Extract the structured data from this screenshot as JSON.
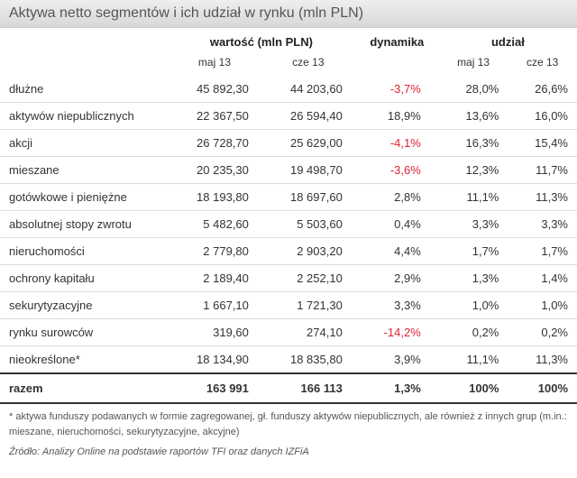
{
  "title": "Aktywa netto segmentów i ich udział w rynku (mln PLN)",
  "headers": {
    "group_value": "wartość (mln PLN)",
    "group_dyn": "dynamika",
    "group_share": "udział",
    "sub_may": "maj 13",
    "sub_jun": "cze 13"
  },
  "rows": [
    {
      "label": "dłużne",
      "v1": "45 892,30",
      "v2": "44 203,60",
      "dyn": "-3,7%",
      "neg": true,
      "s1": "28,0%",
      "s2": "26,6%"
    },
    {
      "label": "aktywów niepublicznych",
      "v1": "22 367,50",
      "v2": "26 594,40",
      "dyn": "18,9%",
      "neg": false,
      "s1": "13,6%",
      "s2": "16,0%"
    },
    {
      "label": "akcji",
      "v1": "26 728,70",
      "v2": "25 629,00",
      "dyn": "-4,1%",
      "neg": true,
      "s1": "16,3%",
      "s2": "15,4%"
    },
    {
      "label": "mieszane",
      "v1": "20 235,30",
      "v2": "19 498,70",
      "dyn": "-3,6%",
      "neg": true,
      "s1": "12,3%",
      "s2": "11,7%"
    },
    {
      "label": "gotówkowe i pieniężne",
      "v1": "18 193,80",
      "v2": "18 697,60",
      "dyn": "2,8%",
      "neg": false,
      "s1": "11,1%",
      "s2": "11,3%"
    },
    {
      "label": "absolutnej stopy zwrotu",
      "v1": "5 482,60",
      "v2": "5 503,60",
      "dyn": "0,4%",
      "neg": false,
      "s1": "3,3%",
      "s2": "3,3%"
    },
    {
      "label": "nieruchomości",
      "v1": "2 779,80",
      "v2": "2 903,20",
      "dyn": "4,4%",
      "neg": false,
      "s1": "1,7%",
      "s2": "1,7%"
    },
    {
      "label": "ochrony kapitału",
      "v1": "2 189,40",
      "v2": "2 252,10",
      "dyn": "2,9%",
      "neg": false,
      "s1": "1,3%",
      "s2": "1,4%"
    },
    {
      "label": "sekurytyzacyjne",
      "v1": "1 667,10",
      "v2": "1 721,30",
      "dyn": "3,3%",
      "neg": false,
      "s1": "1,0%",
      "s2": "1,0%"
    },
    {
      "label": "rynku surowców",
      "v1": "319,60",
      "v2": "274,10",
      "dyn": "-14,2%",
      "neg": true,
      "s1": "0,2%",
      "s2": "0,2%"
    },
    {
      "label": "nieokreślone*",
      "v1": "18 134,90",
      "v2": "18 835,80",
      "dyn": "3,9%",
      "neg": false,
      "s1": "11,1%",
      "s2": "11,3%"
    }
  ],
  "total": {
    "label": "razem",
    "v1": "163 991",
    "v2": "166 113",
    "dyn": "1,3%",
    "s1": "100%",
    "s2": "100%"
  },
  "footnote": "* aktywa funduszy podawanych w formie zagregowanej, gł. funduszy aktywów niepublicznych, ale również z innych grup (m.in.: mieszane, nieruchomości, sekurytyzacyjne, akcyjne)",
  "source": "Źródło: Analizy Online na podstawie raportów TFI oraz danych IZFiA",
  "styling": {
    "title_bg_top": "#eeeeee",
    "title_bg_bottom": "#d8d8d8",
    "title_color": "#555555",
    "neg_color": "#dd2233",
    "row_border": "#dddddd",
    "total_border": "#333333",
    "font_family": "Arial",
    "base_fontsize": 13,
    "footnote_fontsize": 11
  }
}
